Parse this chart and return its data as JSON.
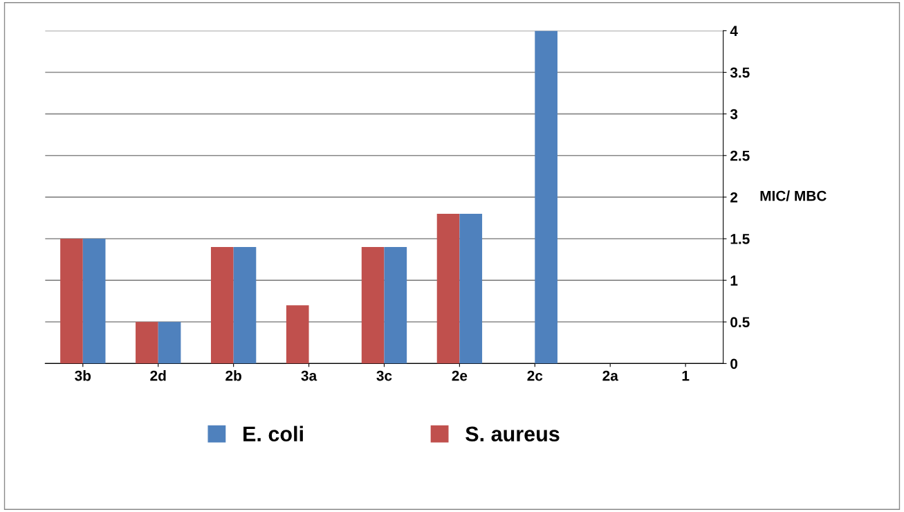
{
  "chart_data": {
    "type": "bar",
    "categories": [
      "3b",
      "2d",
      "2b",
      "3a",
      "3c",
      "2e",
      "2c",
      "2a",
      "1"
    ],
    "series": [
      {
        "name": "S. aureus",
        "color": "#c0504d",
        "values": [
          1.5,
          0.5,
          1.4,
          0.7,
          1.4,
          1.8,
          0,
          0,
          0
        ]
      },
      {
        "name": "E. coli",
        "color": "#4f81bd",
        "values": [
          1.5,
          0.5,
          1.4,
          0,
          1.4,
          1.8,
          4,
          0,
          0
        ]
      }
    ],
    "ylabel": "MIC/ MBC",
    "ylim": [
      0,
      4
    ],
    "yticks": [
      0,
      0.5,
      1,
      1.5,
      2,
      2.5,
      3,
      3.5,
      4
    ],
    "grid": "y",
    "legend": "bottom"
  }
}
